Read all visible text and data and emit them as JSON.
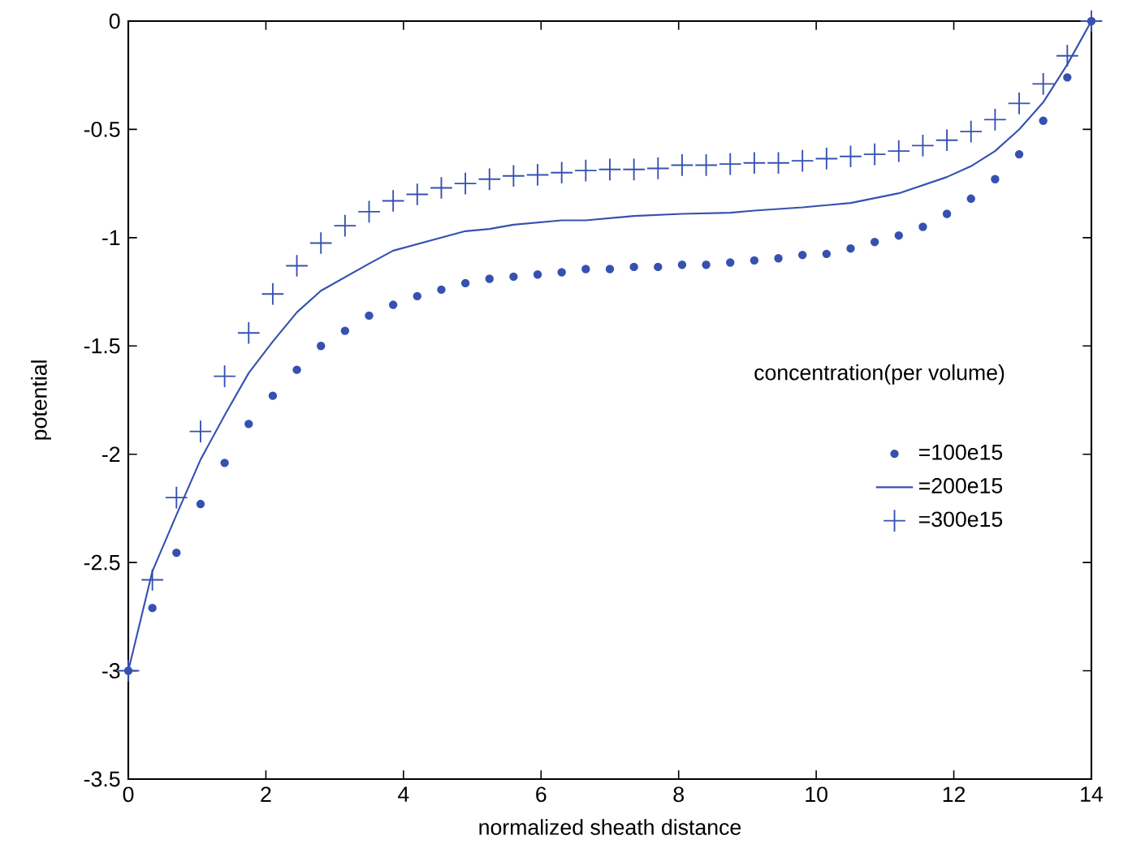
{
  "chart_data": {
    "type": "scatter",
    "xlabel": "normalized sheath distance",
    "ylabel": "potential",
    "legend_title": "concentration(per volume)",
    "legend": "right",
    "grid": false,
    "x": [
      0,
      0.35,
      0.7,
      1.05,
      1.4,
      1.75,
      2.1,
      2.45,
      2.8,
      3.15,
      3.5,
      3.85,
      4.2,
      4.55,
      4.9,
      5.25,
      5.6,
      5.95,
      6.3,
      6.65,
      7.0,
      7.35,
      7.7,
      8.05,
      8.4,
      8.75,
      9.1,
      9.45,
      9.8,
      10.15,
      10.5,
      10.85,
      11.2,
      11.55,
      11.9,
      12.25,
      12.6,
      12.95,
      13.3,
      13.65,
      14
    ],
    "xlim": [
      0,
      14
    ],
    "xticks": [
      0,
      2,
      4,
      6,
      8,
      10,
      12,
      14
    ],
    "ylim": [
      -3.5,
      0
    ],
    "yticks": [
      -3.5,
      -3,
      -2.5,
      -2,
      -1.5,
      -1,
      -0.5,
      0
    ],
    "series": [
      {
        "name": "=100e15",
        "marker": "circle",
        "color": "#3651b0",
        "values": [
          -3.0,
          -2.71,
          -2.455,
          -2.23,
          -2.04,
          -1.86,
          -1.73,
          -1.61,
          -1.5,
          -1.43,
          -1.36,
          -1.31,
          -1.27,
          -1.24,
          -1.21,
          -1.19,
          -1.18,
          -1.17,
          -1.16,
          -1.145,
          -1.145,
          -1.135,
          -1.135,
          -1.125,
          -1.125,
          -1.115,
          -1.105,
          -1.095,
          -1.08,
          -1.075,
          -1.05,
          -1.02,
          -0.99,
          -0.95,
          -0.89,
          -0.82,
          -0.73,
          -0.615,
          -0.46,
          -0.26,
          0
        ]
      },
      {
        "name": "=200e15",
        "type": "line",
        "marker": "none",
        "line_style": "solid",
        "color": "#3651b0",
        "x": [
          0,
          0.35,
          0.7,
          1.05,
          1.4,
          1.75,
          2.1,
          2.45,
          2.8,
          3.5,
          3.85,
          4.9,
          5.25,
          5.6,
          6.3,
          6.65,
          7.35,
          8.05,
          8.75,
          9.1,
          9.8,
          10.5,
          11.2,
          11.9,
          12.25,
          12.6,
          12.95,
          13.3,
          13.65,
          14
        ],
        "values": [
          -3.0,
          -2.54,
          -2.28,
          -2.025,
          -1.82,
          -1.625,
          -1.48,
          -1.345,
          -1.245,
          -1.12,
          -1.06,
          -0.97,
          -0.96,
          -0.94,
          -0.92,
          -0.92,
          -0.9,
          -0.89,
          -0.885,
          -0.875,
          -0.86,
          -0.84,
          -0.795,
          -0.72,
          -0.67,
          -0.6,
          -0.5,
          -0.375,
          -0.2,
          0
        ]
      },
      {
        "name": "=300e15",
        "marker": "cross",
        "color": "#3651b0",
        "values": [
          -3.0,
          -2.58,
          -2.2,
          -1.895,
          -1.64,
          -1.44,
          -1.26,
          -1.13,
          -1.025,
          -0.945,
          -0.88,
          -0.83,
          -0.8,
          -0.77,
          -0.75,
          -0.73,
          -0.715,
          -0.71,
          -0.7,
          -0.69,
          -0.685,
          -0.685,
          -0.68,
          -0.665,
          -0.665,
          -0.66,
          -0.655,
          -0.655,
          -0.645,
          -0.635,
          -0.625,
          -0.615,
          -0.6,
          -0.575,
          -0.55,
          -0.51,
          -0.455,
          -0.38,
          -0.29,
          -0.16,
          0
        ]
      }
    ]
  }
}
